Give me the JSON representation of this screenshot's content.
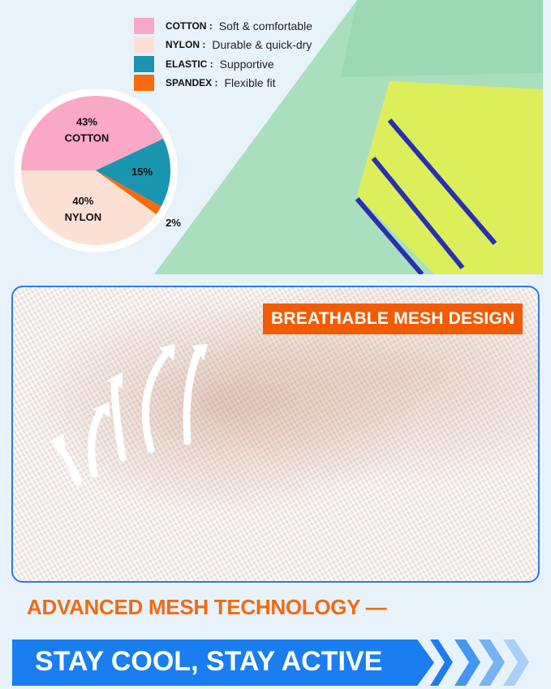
{
  "legend": [
    {
      "key": "COTTON :",
      "desc": "Soft & comfortable",
      "color": "#f9a8c6"
    },
    {
      "key": "NYLON :",
      "desc": "Durable & quick-dry",
      "color": "#fde0d4"
    },
    {
      "key": "ELASTIC :",
      "desc": "Supportive",
      "color": "#1a95b0"
    },
    {
      "key": "SPANDEX :",
      "desc": "Flexible fit",
      "color": "#fb6a0c"
    }
  ],
  "chart_data": {
    "type": "pie",
    "slices": [
      {
        "name": "COTTON",
        "value": 43,
        "label": "43%",
        "color": "#f9a8c6"
      },
      {
        "name": "ELASTIC",
        "value": 15,
        "label": "15%",
        "color": "#1a95b0"
      },
      {
        "name": "SPANDEX",
        "value": 2,
        "label": "2%",
        "color": "#fb6a0c"
      },
      {
        "name": "NYLON",
        "value": 40,
        "label": "40%",
        "color": "#fde0d4"
      }
    ]
  },
  "mesh": {
    "label": "BREATHABLE MESH DESIGN"
  },
  "headline": "ADVANCED MESH TECHNOLOGY —",
  "banner": "STAY COOL, STAY ACTIVE",
  "colors": {
    "accent_orange": "#f26a10",
    "banner_blue": "#1a7ef0",
    "sock_green": "#aee4c2",
    "sock_yellow": "#dcee5a",
    "stripe_blue": "#2a2fb0"
  }
}
